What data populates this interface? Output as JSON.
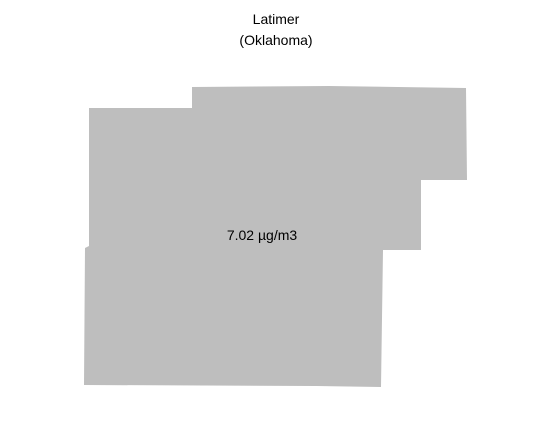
{
  "map": {
    "title": "Latimer",
    "subtitle": "(Oklahoma)",
    "value_label": "7.02 µg/m3",
    "fill_color": "#bebebe"
  }
}
